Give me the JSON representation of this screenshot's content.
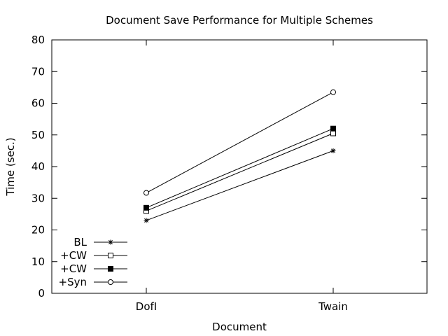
{
  "chart_data": {
    "type": "line",
    "title": "Document Save Performance for Multiple Schemes",
    "xlabel": "Document",
    "ylabel": "Time (sec.)",
    "categories": [
      "DofI",
      "Twain"
    ],
    "ylim": [
      0,
      80
    ],
    "yticks": [
      0,
      10,
      20,
      30,
      40,
      50,
      60,
      70,
      80
    ],
    "grid": false,
    "legend_position": "bottom-left",
    "series": [
      {
        "name": "BL",
        "marker": "asterisk",
        "values": [
          23,
          45
        ]
      },
      {
        "name": "+CW",
        "marker": "open-square",
        "values": [
          26,
          50.5
        ]
      },
      {
        "name": "+CW",
        "marker": "filled-square",
        "values": [
          27,
          52
        ]
      },
      {
        "name": "+Syn",
        "marker": "open-circle",
        "values": [
          31.7,
          63.5
        ]
      }
    ]
  }
}
